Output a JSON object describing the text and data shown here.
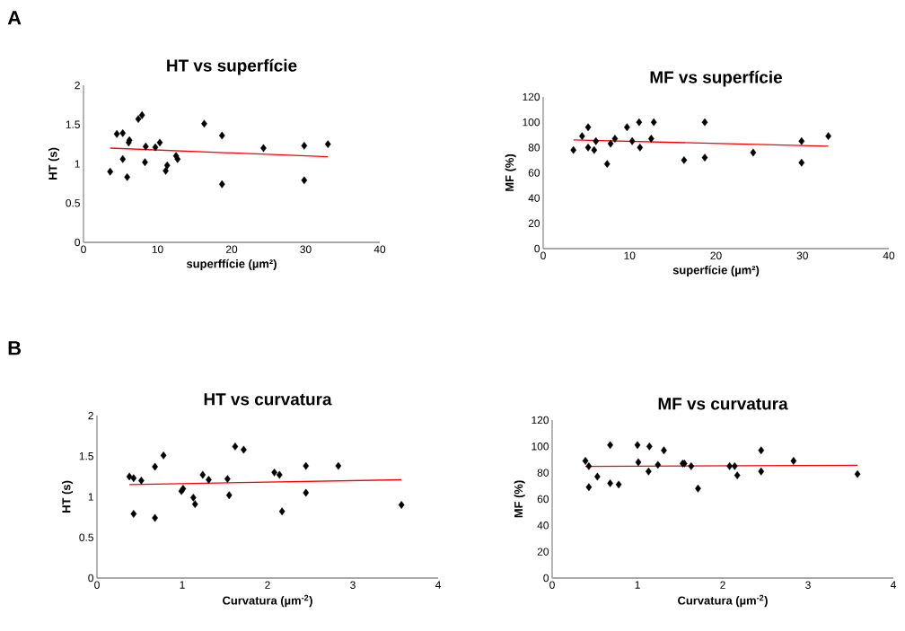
{
  "chart_data": [
    {
      "type": "scatter",
      "title": "HT vs superfície",
      "xlabel": "superffície (µm²)",
      "ylabel": "HT (s)",
      "xlim": [
        0,
        40
      ],
      "ylim": [
        0,
        2
      ],
      "xticks": [
        0,
        10,
        20,
        30,
        40
      ],
      "yticks": [
        0,
        0.5,
        1,
        1.5,
        2
      ],
      "annotations": [
        "A"
      ],
      "series": [
        {
          "marker": "diamond",
          "color": "#000000",
          "x": [
            3.6,
            4.5,
            5.3,
            5.3,
            5.9,
            6.1,
            6.2,
            7.4,
            7.9,
            8.4,
            8.3,
            9.7,
            10.3,
            11.1,
            11.3,
            12.5,
            12.7,
            16.3,
            18.7,
            18.7,
            24.3,
            29.8,
            29.8,
            33.0
          ],
          "values": [
            0.9,
            1.38,
            1.39,
            1.06,
            0.83,
            1.27,
            1.3,
            1.57,
            1.62,
            1.22,
            1.02,
            1.21,
            1.27,
            0.91,
            0.98,
            1.1,
            1.06,
            1.51,
            1.36,
            0.74,
            1.2,
            1.23,
            0.79,
            1.25
          ]
        },
        {
          "type": "line",
          "color": "#ff0000",
          "x": [
            3.6,
            33.0
          ],
          "values": [
            1.2,
            1.09
          ]
        }
      ]
    },
    {
      "type": "scatter",
      "title": "MF vs superfície",
      "xlabel": "superfície (µm²)",
      "ylabel": "MF (%)",
      "xlim": [
        0,
        40
      ],
      "ylim": [
        0,
        120
      ],
      "xticks": [
        0,
        10,
        20,
        30,
        40
      ],
      "yticks": [
        0,
        20,
        40,
        60,
        80,
        100,
        120
      ],
      "series": [
        {
          "marker": "diamond",
          "color": "#000000",
          "x": [
            3.5,
            4.5,
            5.2,
            5.2,
            5.9,
            6.1,
            7.4,
            7.8,
            8.3,
            9.7,
            10.3,
            11.1,
            11.2,
            12.8,
            12.5,
            16.3,
            18.7,
            18.7,
            24.3,
            29.9,
            29.9,
            33.0
          ],
          "values": [
            78,
            89,
            96,
            80,
            78,
            85,
            67,
            83,
            87,
            96,
            85,
            100,
            80,
            100,
            87,
            70,
            100,
            72,
            76,
            85,
            68,
            89
          ]
        },
        {
          "type": "line",
          "color": "#ff0000",
          "x": [
            3.5,
            33.0
          ],
          "values": [
            86,
            81
          ]
        }
      ]
    },
    {
      "type": "scatter",
      "title": "HT vs curvatura",
      "xlabel": "Curvatura (µm$^{-2}$)",
      "ylabel": "HT (s)",
      "xlim": [
        0,
        4
      ],
      "ylim": [
        0,
        2
      ],
      "xticks": [
        0,
        1,
        2,
        3,
        4
      ],
      "yticks": [
        0,
        0.5,
        1,
        1.5,
        2
      ],
      "annotations": [
        "B"
      ],
      "series": [
        {
          "marker": "diamond",
          "color": "#000000",
          "x": [
            0.38,
            0.43,
            0.52,
            0.43,
            0.68,
            0.78,
            0.68,
            0.99,
            1.01,
            1.13,
            1.15,
            1.24,
            1.31,
            1.53,
            1.55,
            1.62,
            1.72,
            2.08,
            2.14,
            2.17,
            2.45,
            2.45,
            2.83,
            3.57
          ],
          "values": [
            1.25,
            1.23,
            1.2,
            0.79,
            1.37,
            1.51,
            0.74,
            1.07,
            1.1,
            0.99,
            0.91,
            1.27,
            1.21,
            1.22,
            1.02,
            1.62,
            1.58,
            1.3,
            1.27,
            0.82,
            1.38,
            1.05,
            1.38,
            0.9
          ]
        },
        {
          "type": "line",
          "color": "#ff0000",
          "x": [
            0.38,
            3.57
          ],
          "values": [
            1.15,
            1.21
          ]
        }
      ]
    },
    {
      "type": "scatter",
      "title": "MF vs curvatura",
      "xlabel": "Curvatura (µm$^{-2}$)",
      "ylabel": "MF (%)",
      "xlim": [
        0,
        4
      ],
      "ylim": [
        0,
        120
      ],
      "xticks": [
        0,
        1,
        2,
        3,
        4
      ],
      "yticks": [
        0,
        20,
        40,
        60,
        80,
        100,
        120
      ],
      "series": [
        {
          "marker": "diamond",
          "color": "#000000",
          "x": [
            0.39,
            0.43,
            0.43,
            0.53,
            0.68,
            0.68,
            0.78,
            1.0,
            1.01,
            1.14,
            1.13,
            1.24,
            1.31,
            1.53,
            1.55,
            1.63,
            1.71,
            2.08,
            2.14,
            2.17,
            2.45,
            2.45,
            2.83,
            3.58
          ],
          "values": [
            89,
            85,
            69,
            77,
            101,
            72,
            71,
            101,
            88,
            100,
            81,
            86,
            97,
            87,
            87,
            85,
            68,
            85,
            85,
            78,
            97,
            81,
            89,
            79
          ]
        },
        {
          "type": "line",
          "color": "#ff0000",
          "x": [
            0.39,
            3.58
          ],
          "values": [
            84.8,
            85.6
          ]
        }
      ]
    }
  ]
}
